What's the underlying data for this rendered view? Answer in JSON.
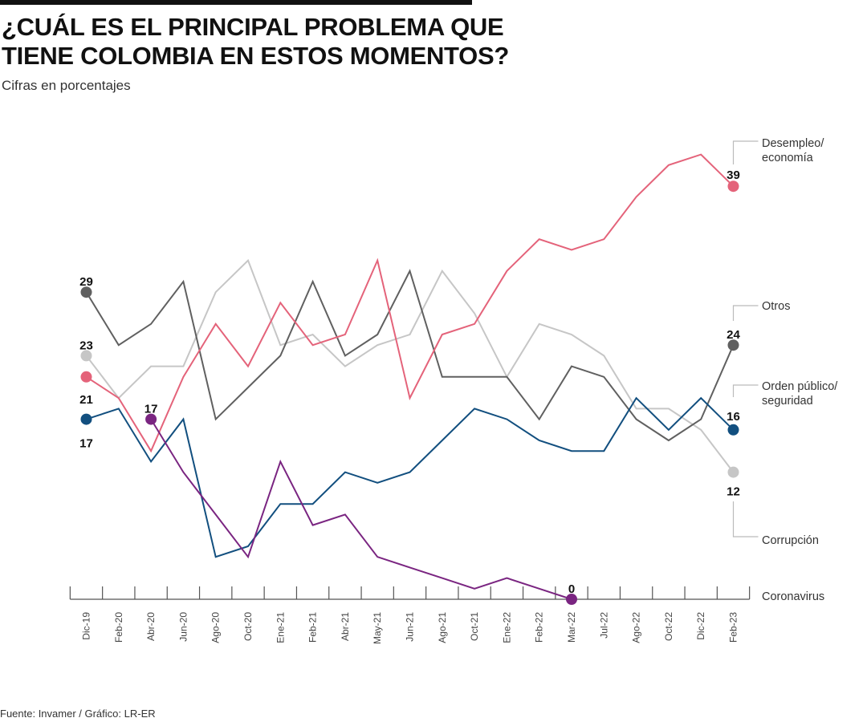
{
  "header": {
    "title": "¿CUÁL ES EL PRINCIPAL PROBLEMA QUE\nTIENE COLOMBIA EN ESTOS MOMENTOS?",
    "subtitle": "Cifras en porcentajes"
  },
  "footer": {
    "source": "Fuente: Invamer / Gráfico: LR-ER"
  },
  "chart_data": {
    "type": "line",
    "title": "¿CUÁL ES EL PRINCIPAL PROBLEMA QUE TIENE COLOMBIA EN ESTOS MOMENTOS?",
    "subtitle": "Cifras en porcentajes",
    "xlabel": "",
    "ylabel": "",
    "ylim": [
      0,
      42
    ],
    "grid": false,
    "legend": "right (direct labels)",
    "categories": [
      "Dic-19",
      "Feb-20",
      "Abr-20",
      "Jun-20",
      "Ago-20",
      "Oct-20",
      "Ene-21",
      "Feb-21",
      "Abr-21",
      "May-21",
      "Jun-21",
      "Ago-21",
      "Oct-21",
      "Ene-22",
      "Feb-22",
      "Mar-22",
      "Jul-22",
      "Ago-22",
      "Oct-22",
      "Dic-22",
      "Feb-23"
    ],
    "series": [
      {
        "name": "Desempleo/ economía",
        "label_lines": [
          "Desempleo/",
          "economía"
        ],
        "color": "#e4637a",
        "start_index": 0,
        "values": [
          21,
          19,
          14,
          21,
          26,
          22,
          28,
          24,
          25,
          32,
          19,
          25,
          26,
          31,
          34,
          33,
          34,
          38,
          41,
          42,
          39
        ],
        "start_label": "21",
        "end_label": "39"
      },
      {
        "name": "Otros",
        "label_lines": [
          "Otros"
        ],
        "color": "#606060",
        "start_index": 0,
        "values": [
          29,
          24,
          26,
          30,
          17,
          20,
          23,
          30,
          23,
          25,
          31,
          21,
          21,
          21,
          17,
          22,
          21,
          17,
          15,
          17,
          24
        ],
        "start_label": "29",
        "end_label": "24"
      },
      {
        "name": "Orden público/ seguridad",
        "label_lines": [
          "Orden público/",
          "seguridad"
        ],
        "color": "#124f7f",
        "start_index": 0,
        "values": [
          17,
          18,
          13,
          17,
          4,
          5,
          9,
          9,
          12,
          11,
          12,
          15,
          18,
          17,
          15,
          14,
          14,
          19,
          16,
          19,
          16
        ],
        "start_label": "17",
        "end_label": "16"
      },
      {
        "name": "Corrupción",
        "label_lines": [
          "Corrupción"
        ],
        "color": "#c6c6c6",
        "start_index": 0,
        "values": [
          23,
          19,
          22,
          22,
          29,
          32,
          24,
          25,
          22,
          24,
          25,
          31,
          27,
          21,
          26,
          25,
          23,
          18,
          18,
          16,
          12
        ],
        "start_label": "23",
        "end_label": "12"
      },
      {
        "name": "Coronavirus",
        "label_lines": [
          "Coronavirus"
        ],
        "color": "#7a2581",
        "start_index": 2,
        "values": [
          17,
          12,
          8,
          4,
          13,
          7,
          8,
          4,
          3,
          2,
          1,
          2,
          1,
          0
        ],
        "start_label": "17",
        "end_label": "0"
      }
    ]
  }
}
